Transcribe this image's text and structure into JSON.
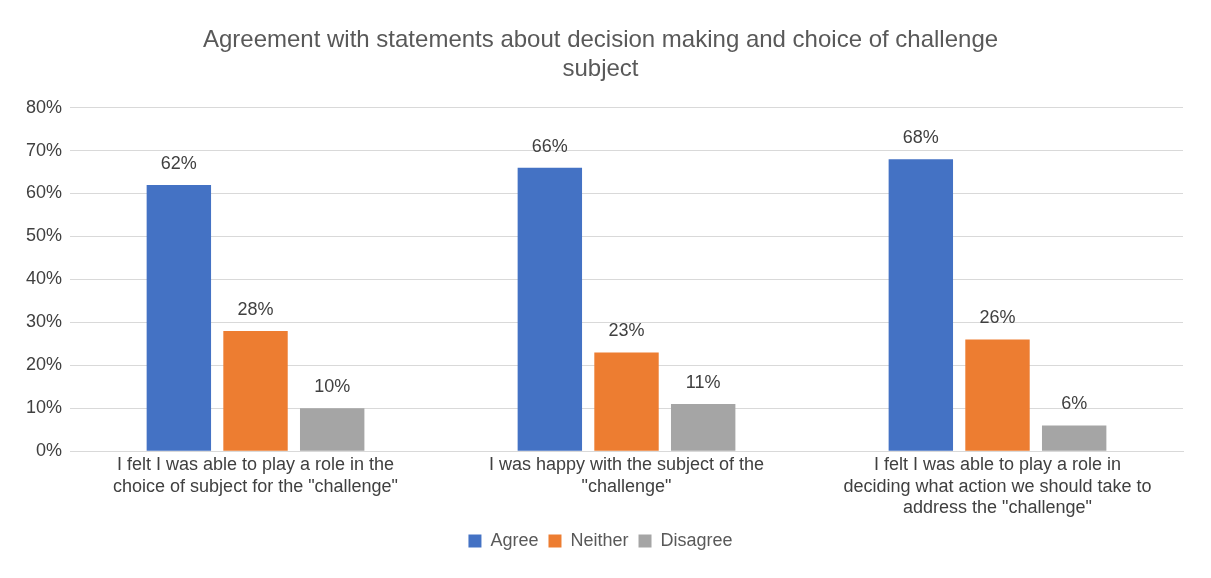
{
  "chart_data": {
    "type": "bar",
    "title": "Agreement with statements about decision making and choice of challenge subject",
    "categories": [
      "I felt I was able to play a role in the choice of subject for the \"challenge\"",
      "I was happy with the subject of the \"challenge\"",
      "I felt I was able to play a role in deciding what action we should take to address the \"challenge\""
    ],
    "series": [
      {
        "name": "Agree",
        "color": "#4472c4",
        "values": [
          62,
          66,
          68
        ],
        "value_labels": [
          "62%",
          "66%",
          "68%"
        ]
      },
      {
        "name": "Neither",
        "color": "#ed7d31",
        "values": [
          28,
          23,
          26
        ],
        "value_labels": [
          "28%",
          "23%",
          "26%"
        ]
      },
      {
        "name": "Disagree",
        "color": "#a5a5a5",
        "values": [
          10,
          11,
          6
        ],
        "value_labels": [
          "10%",
          "11%",
          "6%"
        ]
      }
    ],
    "ylim": [
      0,
      80
    ],
    "yticks": [
      {
        "value": 0,
        "label": "0%"
      },
      {
        "value": 10,
        "label": "10%"
      },
      {
        "value": 20,
        "label": "20%"
      },
      {
        "value": 30,
        "label": "30%"
      },
      {
        "value": 40,
        "label": "40%"
      },
      {
        "value": 50,
        "label": "50%"
      },
      {
        "value": 60,
        "label": "60%"
      },
      {
        "value": 70,
        "label": "70%"
      },
      {
        "value": 80,
        "label": "80%"
      }
    ],
    "grid": "y",
    "legend": "bottom"
  }
}
